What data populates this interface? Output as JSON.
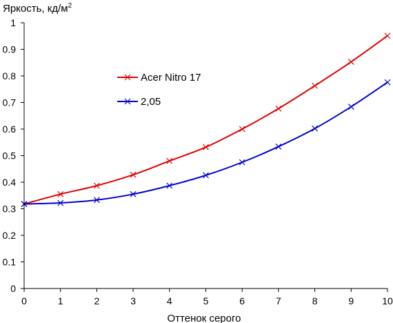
{
  "chart_data": {
    "type": "line",
    "ylabel": "Яркость, кд/м",
    "ylabel_superscript": "2",
    "xlabel": "Оттенок серого",
    "x": [
      0,
      1,
      2,
      3,
      4,
      5,
      6,
      7,
      8,
      9,
      10
    ],
    "xlim": [
      0,
      10
    ],
    "ylim": [
      0,
      1
    ],
    "x_ticks": [
      "0",
      "1",
      "2",
      "3",
      "4",
      "5",
      "6",
      "7",
      "8",
      "9",
      "10"
    ],
    "y_ticks": [
      "0",
      "0.1",
      "0.2",
      "0.3",
      "0.4",
      "0.5",
      "0.6",
      "0.7",
      "0.8",
      "0.9",
      "1"
    ],
    "grid": false,
    "legend_position": "upper-left",
    "series": [
      {
        "name": "Acer Nitro 17",
        "color": "#e00000",
        "marker": "x",
        "values": [
          0.318,
          0.355,
          0.387,
          0.428,
          0.48,
          0.532,
          0.6,
          0.677,
          0.763,
          0.853,
          0.951
        ]
      },
      {
        "name": "2,05",
        "color": "#0000d0",
        "marker": "x",
        "values": [
          0.318,
          0.322,
          0.333,
          0.355,
          0.387,
          0.426,
          0.475,
          0.534,
          0.602,
          0.684,
          0.776
        ]
      }
    ]
  }
}
